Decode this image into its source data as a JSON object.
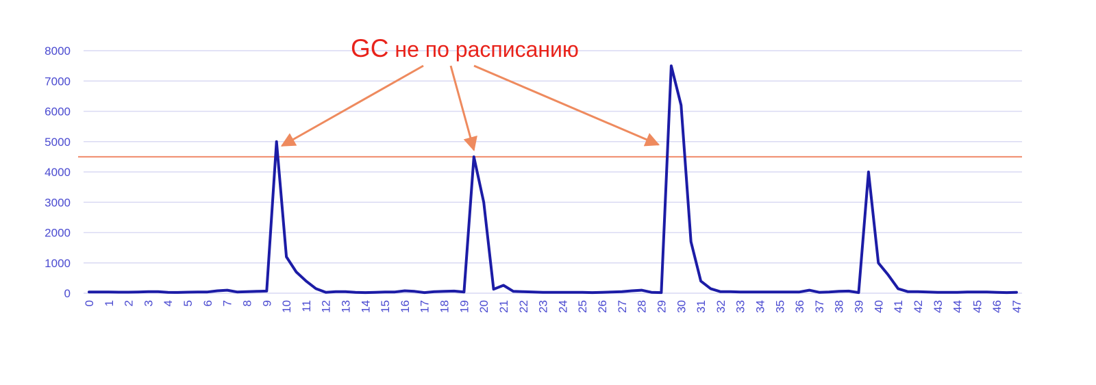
{
  "chart_data": {
    "type": "line",
    "title": "",
    "xlabel": "",
    "ylabel": "",
    "x": [
      "0",
      "1",
      "2",
      "3",
      "4",
      "5",
      "6",
      "7",
      "8",
      "9",
      "10",
      "11",
      "12",
      "13",
      "14",
      "15",
      "16",
      "17",
      "18",
      "19",
      "20",
      "21",
      "22",
      "23",
      "24",
      "25",
      "26",
      "27",
      "28",
      "29",
      "30",
      "31",
      "32",
      "33",
      "34",
      "35",
      "36",
      "37",
      "38",
      "39",
      "40",
      "41",
      "42",
      "43",
      "44",
      "45",
      "46",
      "47"
    ],
    "ylim": [
      0,
      8000
    ],
    "yticks": [
      0,
      1000,
      2000,
      3000,
      4000,
      5000,
      6000,
      7000,
      8000
    ],
    "grid": true,
    "series": [
      {
        "name": "",
        "color": "#1c1ca6",
        "points": [
          [
            0,
            40
          ],
          [
            0.5,
            40
          ],
          [
            1,
            40
          ],
          [
            1.5,
            35
          ],
          [
            2,
            35
          ],
          [
            2.5,
            40
          ],
          [
            3,
            50
          ],
          [
            3.5,
            50
          ],
          [
            4,
            30
          ],
          [
            4.5,
            25
          ],
          [
            5,
            35
          ],
          [
            5.5,
            40
          ],
          [
            6,
            40
          ],
          [
            6.5,
            80
          ],
          [
            7,
            100
          ],
          [
            7.5,
            40
          ],
          [
            8,
            50
          ],
          [
            8.5,
            60
          ],
          [
            9,
            70
          ],
          [
            9.5,
            5000
          ],
          [
            10,
            1200
          ],
          [
            10.5,
            700
          ],
          [
            11,
            400
          ],
          [
            11.5,
            150
          ],
          [
            12,
            30
          ],
          [
            12.5,
            50
          ],
          [
            13,
            50
          ],
          [
            13.5,
            30
          ],
          [
            14,
            20
          ],
          [
            14.5,
            30
          ],
          [
            15,
            40
          ],
          [
            15.5,
            40
          ],
          [
            16,
            80
          ],
          [
            16.5,
            60
          ],
          [
            17,
            20
          ],
          [
            17.5,
            50
          ],
          [
            18,
            60
          ],
          [
            18.5,
            70
          ],
          [
            19,
            40
          ],
          [
            19.5,
            4500
          ],
          [
            20,
            3000
          ],
          [
            20.5,
            130
          ],
          [
            21,
            260
          ],
          [
            21.5,
            60
          ],
          [
            22,
            50
          ],
          [
            22.5,
            40
          ],
          [
            23,
            30
          ],
          [
            23.5,
            30
          ],
          [
            24,
            30
          ],
          [
            24.5,
            30
          ],
          [
            25,
            30
          ],
          [
            25.5,
            20
          ],
          [
            26,
            30
          ],
          [
            26.5,
            40
          ],
          [
            27,
            50
          ],
          [
            27.5,
            80
          ],
          [
            28,
            100
          ],
          [
            28.5,
            30
          ],
          [
            29,
            20
          ],
          [
            29.5,
            7500
          ],
          [
            30,
            6200
          ],
          [
            30.5,
            1700
          ],
          [
            31,
            400
          ],
          [
            31.5,
            150
          ],
          [
            32,
            50
          ],
          [
            32.5,
            50
          ],
          [
            33,
            40
          ],
          [
            33.5,
            40
          ],
          [
            34,
            40
          ],
          [
            34.5,
            40
          ],
          [
            35,
            40
          ],
          [
            35.5,
            40
          ],
          [
            36,
            40
          ],
          [
            36.5,
            100
          ],
          [
            37,
            30
          ],
          [
            37.5,
            40
          ],
          [
            38,
            60
          ],
          [
            38.5,
            70
          ],
          [
            39,
            20
          ],
          [
            39.5,
            4000
          ],
          [
            40,
            1000
          ],
          [
            40.5,
            600
          ],
          [
            41,
            150
          ],
          [
            41.5,
            50
          ],
          [
            42,
            50
          ],
          [
            42.5,
            40
          ],
          [
            43,
            30
          ],
          [
            43.5,
            30
          ],
          [
            44,
            30
          ],
          [
            44.5,
            40
          ],
          [
            45,
            40
          ],
          [
            45.5,
            40
          ],
          [
            46,
            30
          ],
          [
            46.5,
            20
          ],
          [
            47,
            30
          ]
        ]
      }
    ],
    "threshold": {
      "value": 4500,
      "color": "#f08a6a"
    },
    "annotation": {
      "text_prefix": "GC",
      "text_rest": " не по расписанию",
      "color": "#e8231b",
      "arrow_color": "#ee8a5e",
      "targets": [
        [
          9.5,
          5000
        ],
        [
          19.5,
          4500
        ],
        [
          29.2,
          4900
        ]
      ]
    },
    "colors": {
      "axis_text": "#4a4ad0",
      "grid": "#d9d9f3"
    }
  }
}
